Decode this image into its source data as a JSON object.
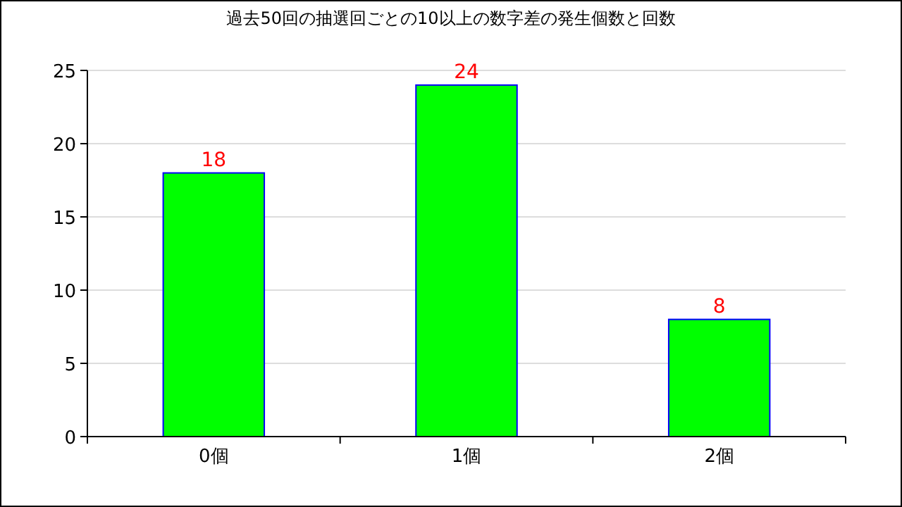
{
  "chart_data": {
    "type": "bar",
    "title": "過去50回の抽選回ごとの10以上の数字差の発生個数と回数",
    "categories": [
      "0個",
      "1個",
      "2個"
    ],
    "values": [
      18,
      24,
      8
    ],
    "color": "#00ff00",
    "ylim": [
      0,
      25
    ],
    "yticks": [
      0,
      5,
      10,
      15,
      20,
      25
    ],
    "grid": "y",
    "data_labels": true
  }
}
